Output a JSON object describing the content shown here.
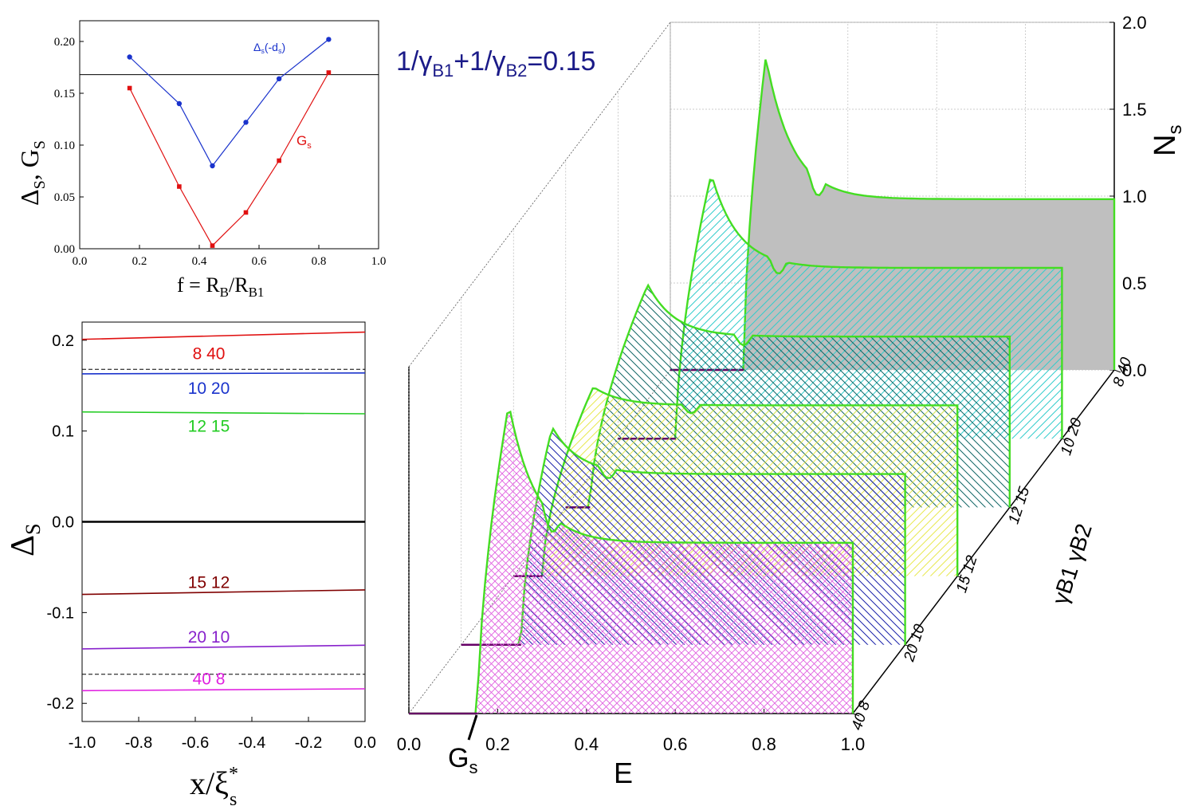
{
  "chart_data": [
    {
      "id": "top-left",
      "type": "line",
      "xlabel_main": "f = R",
      "xlabel_sub1": "B",
      "xlabel_mid": "/R",
      "xlabel_sub2": "B1",
      "ylabel_main1": "Δ",
      "ylabel_sub1": "S",
      "ylabel_mid": ", G",
      "ylabel_sub2": "S",
      "xlim": [
        0.0,
        1.0
      ],
      "ylim": [
        0.0,
        0.22
      ],
      "xticks": [
        "0.0",
        "0.2",
        "0.4",
        "0.6",
        "0.8",
        "1.0"
      ],
      "xtick_values": [
        0.0,
        0.2,
        0.4,
        0.6,
        0.8,
        1.0
      ],
      "yticks": [
        "0.00",
        "0.05",
        "0.10",
        "0.15",
        "0.20"
      ],
      "ytick_values": [
        0.0,
        0.05,
        0.1,
        0.15,
        0.2
      ],
      "hline": 0.168,
      "series": [
        {
          "name": "Δs(-ds)",
          "label_main": "Δ",
          "label_sub1": "s",
          "label_mid": "(-d",
          "label_sub2": "s",
          "label_end": ")",
          "color": "#1a33cc",
          "marker": "circle",
          "x": [
            0.167,
            0.333,
            0.444,
            0.556,
            0.667,
            0.833
          ],
          "y": [
            0.185,
            0.14,
            0.08,
            0.122,
            0.164,
            0.202
          ]
        },
        {
          "name": "Gs",
          "label_main": "G",
          "label_sub": "s",
          "color": "#e01010",
          "marker": "square",
          "x": [
            0.167,
            0.333,
            0.444,
            0.556,
            0.667,
            0.833
          ],
          "y": [
            0.155,
            0.06,
            0.003,
            0.035,
            0.085,
            0.17
          ]
        }
      ]
    },
    {
      "id": "bottom-left",
      "type": "line",
      "xlabel_main": "x/ξ",
      "xlabel_sup": "*",
      "xlabel_sub": "s",
      "ylabel_main": "Δ",
      "ylabel_sub": "S",
      "xlim": [
        -1.0,
        0.0
      ],
      "ylim": [
        -0.22,
        0.22
      ],
      "xticks": [
        "-1.0",
        "-0.8",
        "-0.6",
        "-0.4",
        "-0.2",
        "0.0"
      ],
      "xtick_values": [
        -1.0,
        -0.8,
        -0.6,
        -0.4,
        -0.2,
        0.0
      ],
      "yticks": [
        "0.2",
        "0.1",
        "0.0",
        "-0.1",
        "-0.2"
      ],
      "ytick_values": [
        0.2,
        0.1,
        0.0,
        -0.1,
        -0.2
      ],
      "dashed_lines": [
        0.168,
        -0.168
      ],
      "zero_line": 0.0,
      "series": [
        {
          "name": "8 40",
          "color": "#e01010",
          "y_start": 0.201,
          "y_end": 0.209
        },
        {
          "name": "10 20",
          "color": "#1a33cc",
          "y_start": 0.163,
          "y_end": 0.164
        },
        {
          "name": "12 15",
          "color": "#22cc22",
          "y_start": 0.121,
          "y_end": 0.119
        },
        {
          "name": "15 12",
          "color": "#800000",
          "y_start": -0.08,
          "y_end": -0.075
        },
        {
          "name": "20 10",
          "color": "#8822cc",
          "y_start": -0.14,
          "y_end": -0.136
        },
        {
          "name": "40 8",
          "color": "#e020e0",
          "y_start": -0.186,
          "y_end": -0.184
        }
      ]
    },
    {
      "id": "main-3d",
      "type": "area",
      "title_pre": "1/",
      "title_gamma": "γ",
      "title_sub1": "B1",
      "title_mid": "+1/",
      "title_sub2": "B2",
      "title_post": "=0.15",
      "xlabel": "E",
      "zlabel_main": "N",
      "zlabel_sub": "s",
      "depth_label": "γB1 γB2",
      "gs_label_main": "G",
      "gs_label_sub": "s",
      "xlim": [
        0.0,
        1.0
      ],
      "zlim": [
        0.0,
        2.0
      ],
      "xticks": [
        "0.0",
        "0.2",
        "0.4",
        "0.6",
        "0.8",
        "1.0"
      ],
      "xtick_values": [
        0.0,
        0.2,
        0.4,
        0.6,
        0.8,
        1.0
      ],
      "zticks": [
        "0.0",
        "0.5",
        "1.0",
        "1.5",
        "2.0"
      ],
      "ztick_values": [
        0.0,
        0.5,
        1.0,
        1.5,
        2.0
      ],
      "depth_ticks": [
        "40 8",
        "20 10",
        "15 12",
        "12 15",
        "10 20",
        "8 40"
      ],
      "series": [
        {
          "name": "40 8",
          "gap": 0.155,
          "peak_E": 0.225,
          "peak": 1.85,
          "dip_E": 0.3,
          "dip_depth": 0.1,
          "tail": 1.02,
          "fill": "#e060e0",
          "pattern": "cross"
        },
        {
          "name": "20 10",
          "gap": 0.135,
          "peak_E": 0.205,
          "peak": 1.3,
          "dip_E": 0.31,
          "dip_depth": 0.06,
          "tail": 1.02,
          "fill": "#1a22aa",
          "pattern": "diag-back"
        },
        {
          "name": "15 12",
          "gap": 0.065,
          "peak_E": 0.18,
          "peak": 1.13,
          "dip_E": 0.38,
          "dip_depth": 0.05,
          "tail": 1.02,
          "fill": "#e8e850",
          "pattern": "diag"
        },
        {
          "name": "12 15",
          "gap": 0.055,
          "peak_E": 0.185,
          "peak": 1.33,
          "dip_E": 0.38,
          "dip_depth": 0.06,
          "tail": 1.02,
          "fill": "#116666",
          "pattern": "diag-back"
        },
        {
          "name": "10 20",
          "gap": 0.13,
          "peak_E": 0.21,
          "peak": 1.58,
          "dip_E": 0.34,
          "dip_depth": 0.08,
          "tail": 1.02,
          "fill": "#33cccc",
          "pattern": "diag"
        },
        {
          "name": "8 40",
          "gap": 0.165,
          "peak_E": 0.215,
          "peak": 1.87,
          "dip_E": 0.31,
          "dip_depth": 0.1,
          "tail": 1.02,
          "fill": "#bfbfbf",
          "pattern": "solid"
        }
      ]
    }
  ]
}
